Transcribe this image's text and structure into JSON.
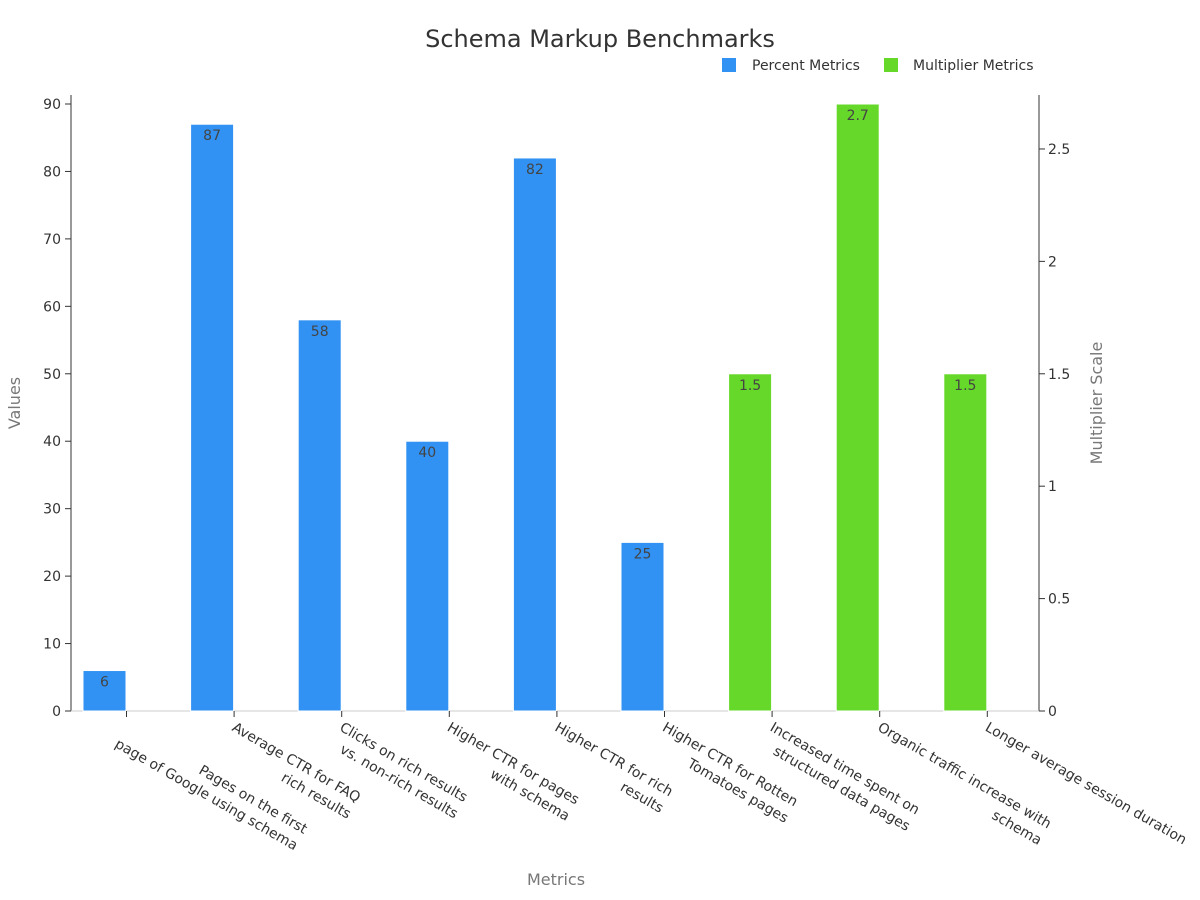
{
  "chart_data": {
    "type": "bar",
    "title": "Schema Markup Benchmarks",
    "xlabel": "Metrics",
    "ylabel": "Values",
    "y2label": "Multiplier Scale",
    "ylim": [
      0,
      90
    ],
    "y2lim": [
      0,
      2.7
    ],
    "yticks": [
      0,
      10,
      20,
      30,
      40,
      50,
      60,
      70,
      80,
      90
    ],
    "y2ticks": [
      "0",
      "0.5",
      "1",
      "1.5",
      "2",
      "2.5"
    ],
    "grid": false,
    "legend_position": "top-right",
    "categories": [
      [
        "Pages on the first",
        "page of Google using schema"
      ],
      [
        "Average CTR for FAQ",
        "rich results"
      ],
      [
        "Clicks on rich results",
        "vs. non-rich results"
      ],
      [
        "Higher CTR for pages",
        "with schema"
      ],
      [
        "Higher CTR for rich",
        "results"
      ],
      [
        "Higher CTR for Rotten",
        "Tomatoes pages"
      ],
      [
        "Increased time spent on",
        "structured data pages"
      ],
      [
        "Organic traffic increase with",
        "schema"
      ],
      [
        "Longer average session duration"
      ]
    ],
    "series": [
      {
        "name": "Percent Metrics",
        "color": "#3192f3",
        "axis": "left",
        "values": [
          6,
          87,
          58,
          40,
          82,
          25,
          null,
          null,
          null
        ],
        "labels": [
          "6",
          "87",
          "58",
          "40",
          "82",
          "25",
          "",
          "",
          ""
        ]
      },
      {
        "name": "Multiplier Metrics",
        "color": "#66d82a",
        "axis": "right",
        "values": [
          null,
          null,
          null,
          null,
          null,
          null,
          1.5,
          2.7,
          1.5
        ],
        "labels": [
          "",
          "",
          "",
          "",
          "",
          "",
          "1.5",
          "2.7",
          "1.5"
        ]
      }
    ]
  }
}
